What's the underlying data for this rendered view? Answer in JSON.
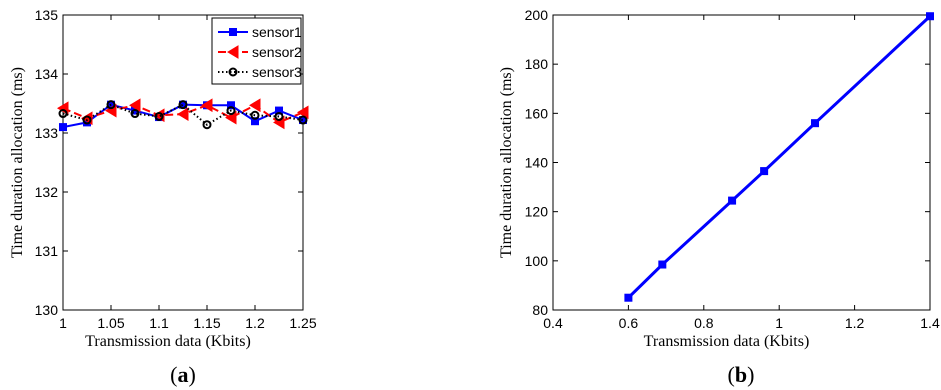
{
  "chart_data": [
    {
      "type": "line",
      "panel_label_open": "(",
      "panel_label_letter": "a",
      "panel_label_close": ")",
      "xlabel": "Transmission data (Kbits)",
      "ylabel": "Time duration allocation (ms)",
      "xlim": [
        1,
        1.25
      ],
      "ylim": [
        130,
        135
      ],
      "xticks": [
        1,
        1.05,
        1.1,
        1.15,
        1.2,
        1.25
      ],
      "xtick_labels": [
        "1",
        "1.05",
        "1.1",
        "1.15",
        "1.2",
        "1.25"
      ],
      "yticks": [
        130,
        131,
        132,
        133,
        134,
        135
      ],
      "ytick_labels": [
        "130",
        "131",
        "132",
        "133",
        "134",
        "135"
      ],
      "grid": false,
      "legend_position": "top-right",
      "x": [
        1,
        1.025,
        1.05,
        1.075,
        1.1,
        1.125,
        1.15,
        1.175,
        1.2,
        1.225,
        1.25
      ],
      "series": [
        {
          "name": "sensor1",
          "color": "#0000ff",
          "line_style": "solid",
          "marker": "square",
          "values": [
            133.1,
            133.18,
            133.48,
            133.38,
            133.27,
            133.48,
            133.47,
            133.47,
            133.2,
            133.38,
            133.22
          ]
        },
        {
          "name": "sensor2",
          "color": "#ff0000",
          "line_style": "dashed",
          "marker": "triangle-left",
          "values": [
            133.42,
            133.25,
            133.38,
            133.47,
            133.3,
            133.32,
            133.47,
            133.26,
            133.47,
            133.18,
            133.35
          ]
        },
        {
          "name": "sensor3",
          "color": "#000000",
          "line_style": "dotted",
          "marker": "circle",
          "values": [
            133.33,
            133.22,
            133.48,
            133.33,
            133.28,
            133.48,
            133.14,
            133.38,
            133.3,
            133.28,
            133.22
          ]
        }
      ]
    },
    {
      "type": "line",
      "panel_label_open": "(",
      "panel_label_letter": "b",
      "panel_label_close": ")",
      "xlabel": "Transmission data (Kbits)",
      "ylabel": "Time duration allocation (ms)",
      "xlim": [
        0.4,
        1.4
      ],
      "ylim": [
        80,
        200
      ],
      "xticks": [
        0.4,
        0.6,
        0.8,
        1,
        1.2,
        1.4
      ],
      "xtick_labels": [
        "0.4",
        "0.6",
        "0.8",
        "1",
        "1.2",
        "1.4"
      ],
      "yticks": [
        80,
        100,
        120,
        140,
        160,
        180,
        200
      ],
      "ytick_labels": [
        "80",
        "100",
        "120",
        "140",
        "160",
        "180",
        "200"
      ],
      "grid": false,
      "series": [
        {
          "color": "#0000ff",
          "line_style": "solid",
          "marker": "square",
          "x": [
            0.6,
            0.69,
            0.875,
            0.96,
            1.095,
            1.4
          ],
          "values": [
            85,
            98.5,
            124.5,
            136.5,
            156,
            199.5
          ]
        }
      ]
    }
  ]
}
